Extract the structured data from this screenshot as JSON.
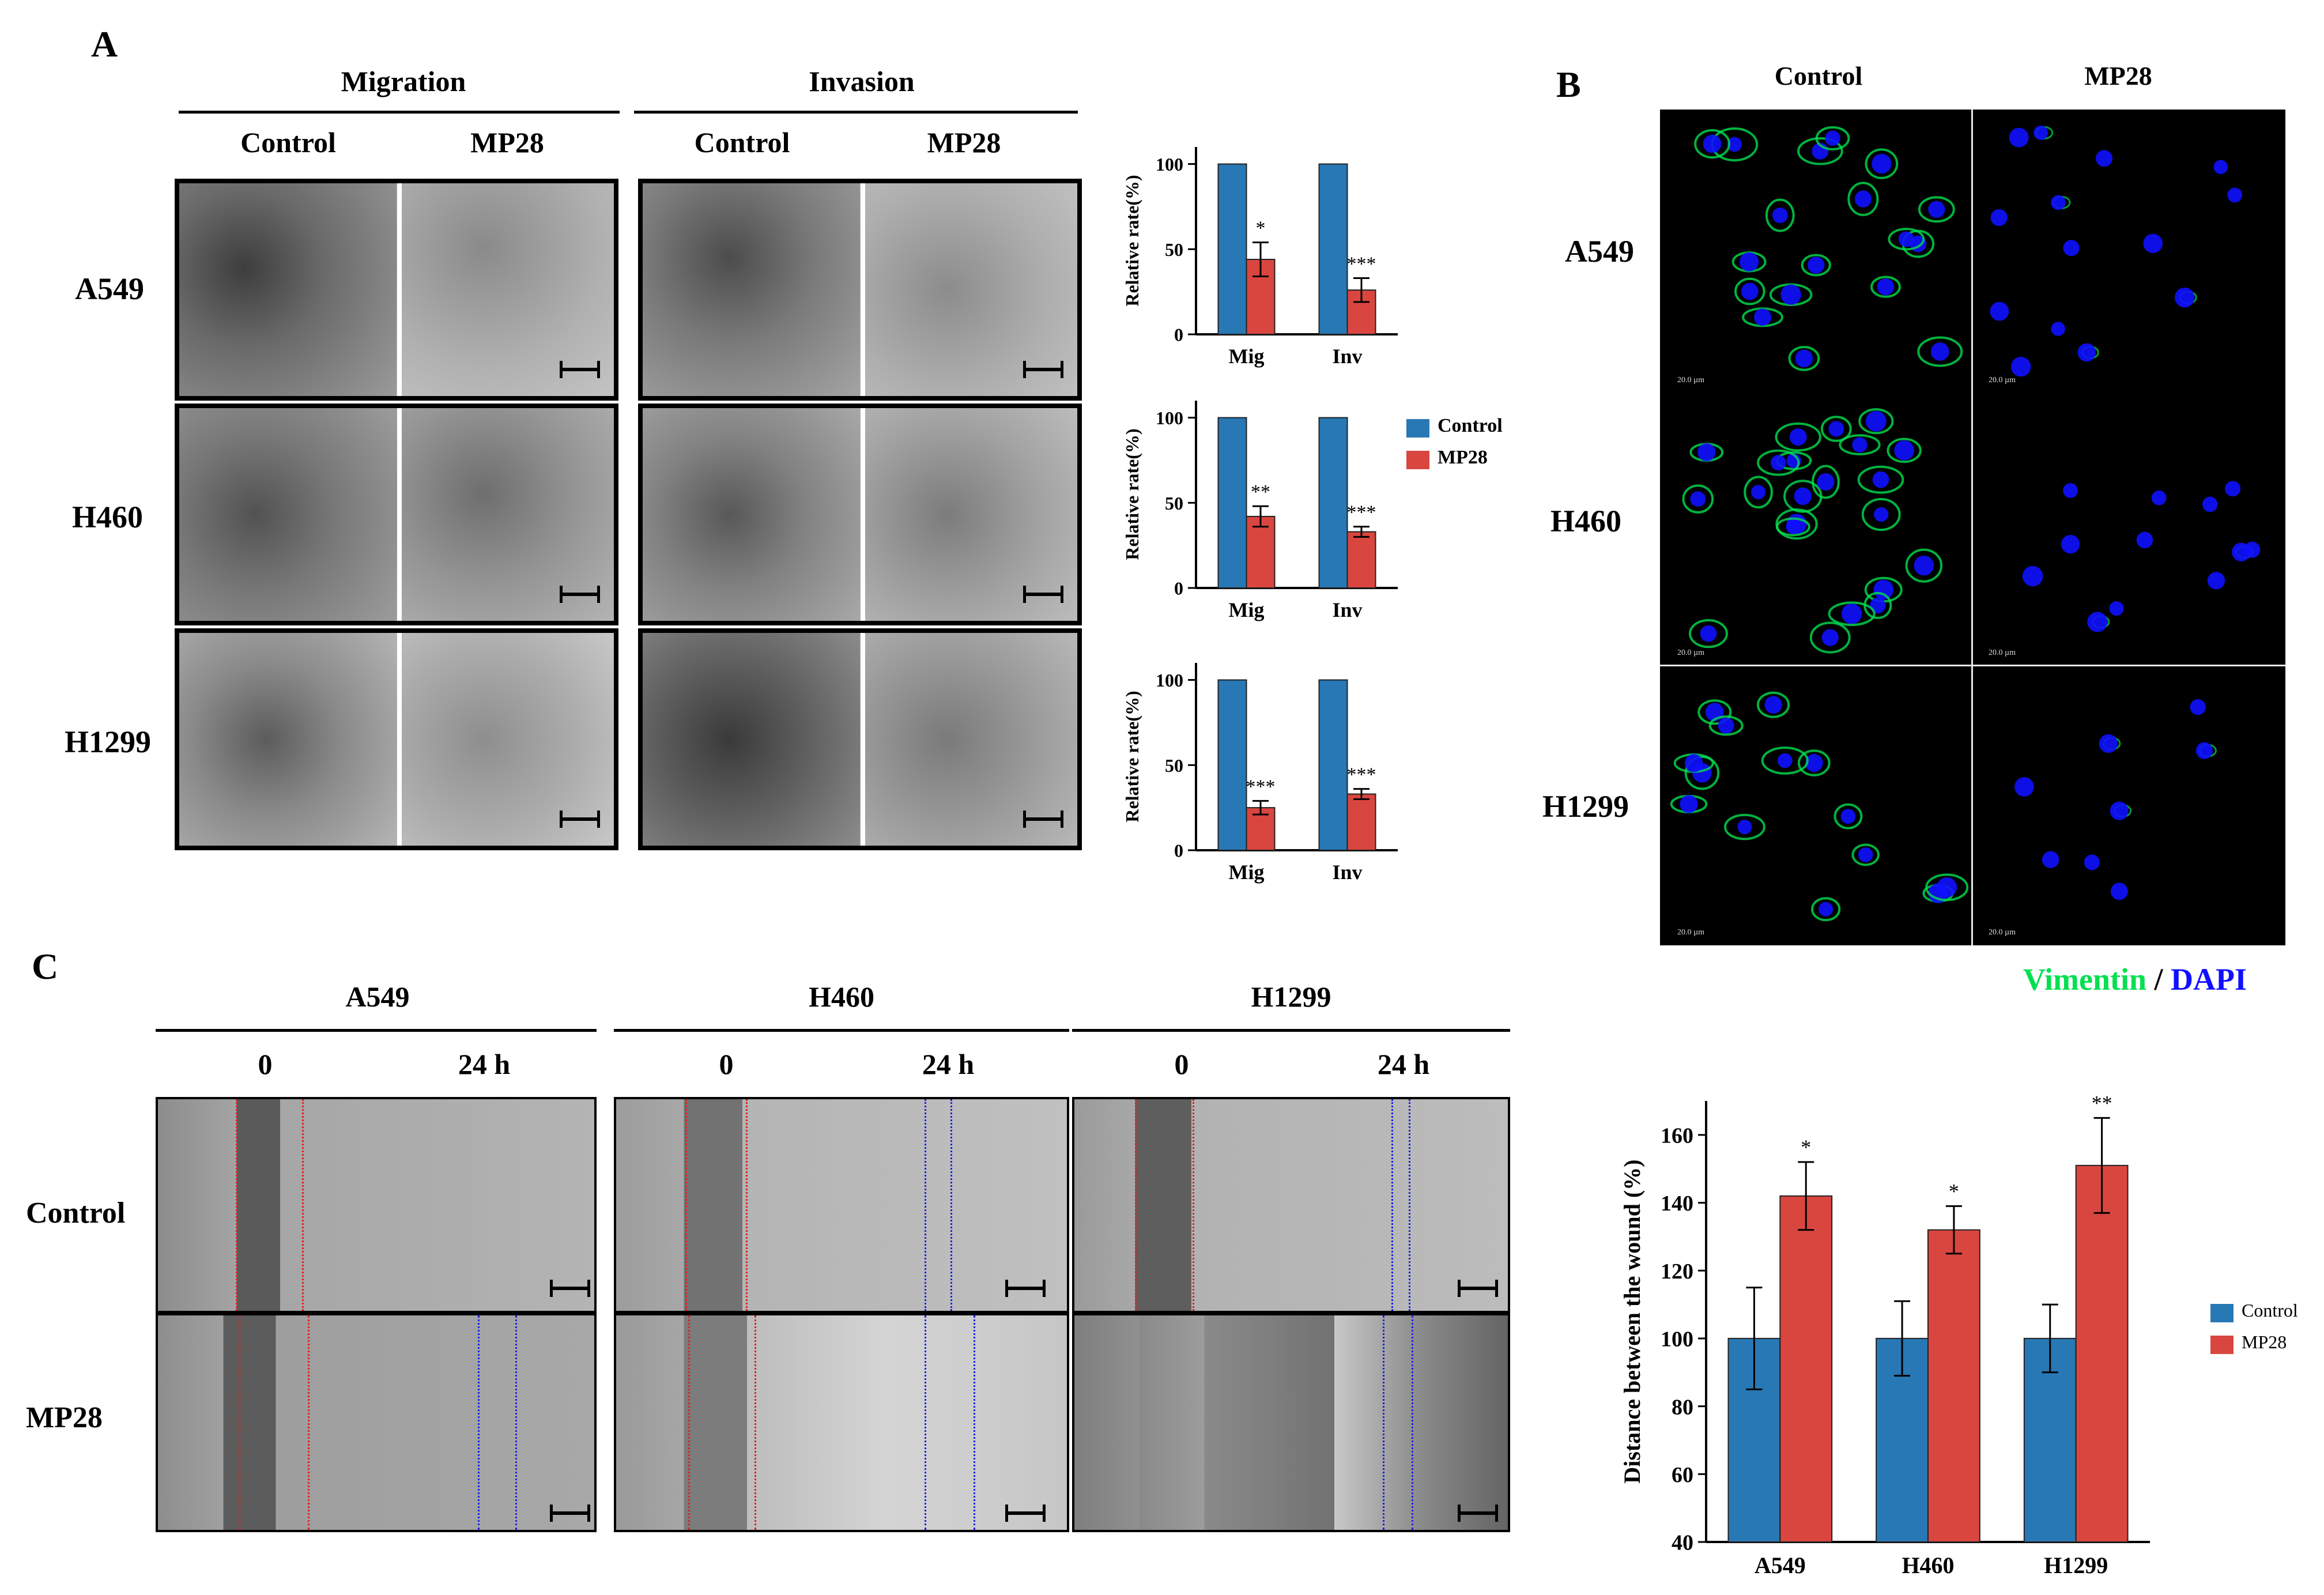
{
  "panel_a": {
    "letter": "A",
    "groups": [
      "Migration",
      "Invasion"
    ],
    "conditions": [
      "Control",
      "MP28",
      "Control",
      "MP28"
    ],
    "rows": [
      "A549",
      "H460",
      "H1299"
    ]
  },
  "panel_b": {
    "letter": "B",
    "conditions": [
      "Control",
      "MP28"
    ],
    "rows": [
      "A549",
      "H460",
      "H1299"
    ],
    "stain_vimentin": "Vimentin",
    "stain_sep": " / ",
    "stain_dapi": "DAPI",
    "scale_text": "20.0 µm",
    "colors": {
      "vimentin": "#00e050",
      "dapi": "#1010ff"
    }
  },
  "panel_c": {
    "letter": "C",
    "cell_lines": [
      "A549",
      "H460",
      "H1299"
    ],
    "times": [
      "0",
      "24 h"
    ],
    "rows": [
      "Control",
      "MP28"
    ]
  },
  "legend": {
    "control": "Control",
    "mp28": "MP28"
  },
  "colors": {
    "control": "#2878b5",
    "mp28": "#d9463f"
  },
  "chart_data": [
    {
      "type": "bar",
      "panel": "A",
      "cell_line": "A549",
      "categories": [
        "Mig",
        "Inv"
      ],
      "series": [
        {
          "name": "Control",
          "values": [
            100,
            100
          ],
          "errors": [
            0,
            0
          ]
        },
        {
          "name": "MP28",
          "values": [
            44,
            26
          ],
          "errors": [
            10,
            7
          ]
        }
      ],
      "significance": [
        [
          "",
          "*"
        ],
        [
          "",
          "***"
        ]
      ],
      "ylabel": "Relative rate(%)",
      "yticks": [
        0,
        50,
        100
      ],
      "ylim": [
        0,
        110
      ]
    },
    {
      "type": "bar",
      "panel": "A",
      "cell_line": "H460",
      "categories": [
        "Mig",
        "Inv"
      ],
      "series": [
        {
          "name": "Control",
          "values": [
            100,
            100
          ],
          "errors": [
            0,
            0
          ]
        },
        {
          "name": "MP28",
          "values": [
            42,
            33
          ],
          "errors": [
            6,
            3
          ]
        }
      ],
      "significance": [
        [
          "",
          "**"
        ],
        [
          "",
          "***"
        ]
      ],
      "ylabel": "Relative rate(%)",
      "yticks": [
        0,
        50,
        100
      ],
      "ylim": [
        0,
        110
      ],
      "legend": "right"
    },
    {
      "type": "bar",
      "panel": "A",
      "cell_line": "H1299",
      "categories": [
        "Mig",
        "Inv"
      ],
      "series": [
        {
          "name": "Control",
          "values": [
            100,
            100
          ],
          "errors": [
            0,
            0
          ]
        },
        {
          "name": "MP28",
          "values": [
            25,
            33
          ],
          "errors": [
            4,
            3
          ]
        }
      ],
      "significance": [
        [
          "",
          "***"
        ],
        [
          "",
          "***"
        ]
      ],
      "ylabel": "Relative rate(%)",
      "yticks": [
        0,
        50,
        100
      ],
      "ylim": [
        0,
        110
      ]
    },
    {
      "type": "bar",
      "panel": "C",
      "categories": [
        "A549",
        "H460",
        "H1299"
      ],
      "series": [
        {
          "name": "Control",
          "values": [
            100,
            100,
            100
          ],
          "errors": [
            15,
            11,
            10
          ]
        },
        {
          "name": "MP28",
          "values": [
            142,
            132,
            151
          ],
          "errors": [
            10,
            7,
            14
          ]
        }
      ],
      "significance": [
        [
          "",
          "*"
        ],
        [
          "",
          "*"
        ],
        [
          "",
          "**"
        ]
      ],
      "ylabel": "Distance between the wound (%)",
      "yticks": [
        40,
        60,
        80,
        100,
        120,
        140,
        160
      ],
      "ylim": [
        40,
        170
      ],
      "legend": "right"
    }
  ]
}
